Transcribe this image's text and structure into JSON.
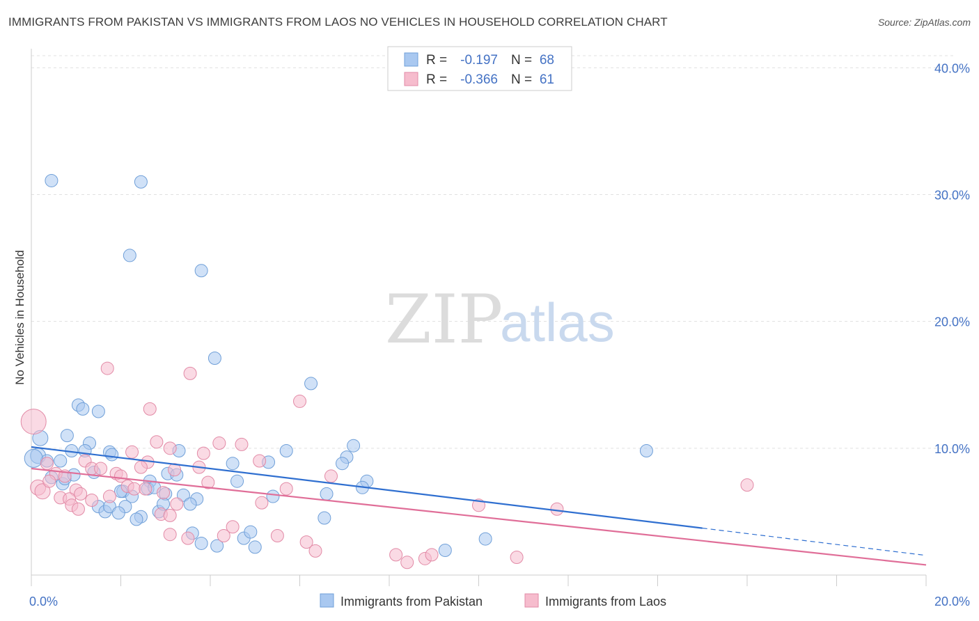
{
  "title": "IMMIGRANTS FROM PAKISTAN VS IMMIGRANTS FROM LAOS NO VEHICLES IN HOUSEHOLD CORRELATION CHART",
  "source": "Source: ZipAtlas.com",
  "watermark": {
    "zip": "ZIP",
    "atlas": "atlas"
  },
  "chart_data": {
    "type": "scatter",
    "xlabel": "",
    "ylabel": "No Vehicles in Household",
    "xlim": [
      0,
      20
    ],
    "ylim": [
      0,
      41.5
    ],
    "x_tick_labels": [
      {
        "value": 0,
        "label": "0.0%"
      },
      {
        "value": 20,
        "label": "20.0%"
      }
    ],
    "y_tick_labels": [
      {
        "value": 10,
        "label": "10.0%"
      },
      {
        "value": 20,
        "label": "20.0%"
      },
      {
        "value": 30,
        "label": "30.0%"
      },
      {
        "value": 40,
        "label": "40.0%"
      }
    ],
    "legend_stats": [
      {
        "r_label": "R =",
        "r_value": "-0.197",
        "n_label": "N =",
        "n_value": "68",
        "color": "#a9c8f0",
        "stroke": "#6f9fd8"
      },
      {
        "r_label": "R =",
        "r_value": "-0.366",
        "n_label": "N =",
        "n_value": "61",
        "color": "#f6bccd",
        "stroke": "#e28aa6"
      }
    ],
    "series": [
      {
        "name": "Immigrants from Pakistan",
        "color": "#a9c8f0",
        "stroke": "#6f9fd8",
        "line_color": "#2f6fd0",
        "trend": {
          "x0": 0,
          "y0": 10.1,
          "x1": 15,
          "y1": 3.7,
          "dash_to_x": 20,
          "dash_to_y": 1.55
        },
        "points": [
          [
            0.45,
            31.1
          ],
          [
            2.45,
            31.0
          ],
          [
            2.2,
            25.2
          ],
          [
            3.8,
            24.0
          ],
          [
            4.1,
            17.1
          ],
          [
            6.25,
            15.1
          ],
          [
            1.05,
            13.4
          ],
          [
            1.5,
            12.9
          ],
          [
            1.15,
            13.1
          ],
          [
            0.2,
            10.8
          ],
          [
            0.8,
            11.0
          ],
          [
            1.3,
            10.4
          ],
          [
            0.15,
            9.4
          ],
          [
            0.35,
            9.0
          ],
          [
            0.65,
            9.0
          ],
          [
            0.9,
            9.8
          ],
          [
            1.2,
            9.8
          ],
          [
            1.75,
            9.7
          ],
          [
            3.3,
            9.8
          ],
          [
            4.5,
            8.8
          ],
          [
            5.3,
            8.9
          ],
          [
            5.7,
            9.8
          ],
          [
            7.05,
            9.3
          ],
          [
            6.95,
            8.8
          ],
          [
            7.2,
            10.2
          ],
          [
            13.75,
            9.8
          ],
          [
            0.45,
            7.7
          ],
          [
            0.7,
            7.2
          ],
          [
            0.75,
            7.6
          ],
          [
            0.95,
            7.9
          ],
          [
            1.4,
            8.1
          ],
          [
            3.05,
            8.0
          ],
          [
            3.25,
            7.9
          ],
          [
            4.6,
            7.4
          ],
          [
            2.65,
            7.4
          ],
          [
            2.05,
            6.6
          ],
          [
            2.25,
            6.2
          ],
          [
            2.6,
            6.8
          ],
          [
            2.75,
            6.9
          ],
          [
            3.0,
            6.4
          ],
          [
            3.4,
            6.3
          ],
          [
            3.7,
            6.0
          ],
          [
            5.4,
            6.2
          ],
          [
            6.6,
            6.4
          ],
          [
            7.5,
            7.4
          ],
          [
            7.4,
            6.9
          ],
          [
            1.5,
            5.4
          ],
          [
            1.65,
            5.0
          ],
          [
            1.75,
            5.4
          ],
          [
            2.1,
            5.4
          ],
          [
            2.45,
            4.6
          ],
          [
            2.35,
            4.4
          ],
          [
            2.85,
            5.0
          ],
          [
            2.95,
            5.6
          ],
          [
            3.55,
            5.6
          ],
          [
            3.6,
            3.3
          ],
          [
            3.8,
            2.5
          ],
          [
            4.15,
            2.3
          ],
          [
            4.75,
            2.9
          ],
          [
            4.9,
            3.4
          ],
          [
            5.0,
            2.2
          ],
          [
            6.55,
            4.5
          ],
          [
            9.25,
            1.95
          ],
          [
            10.15,
            2.85
          ],
          [
            1.95,
            4.9
          ],
          [
            2.0,
            6.6
          ],
          [
            0.05,
            9.2
          ],
          [
            1.8,
            9.5
          ]
        ]
      },
      {
        "name": "Immigrants from Laos",
        "color": "#f6bccd",
        "stroke": "#e28aa6",
        "line_color": "#e06e98",
        "trend": {
          "x0": 0,
          "y0": 8.4,
          "x1": 20,
          "y1": 0.8
        },
        "points": [
          [
            0.05,
            12.1
          ],
          [
            1.7,
            16.3
          ],
          [
            3.55,
            15.9
          ],
          [
            6.0,
            13.7
          ],
          [
            2.65,
            13.1
          ],
          [
            2.8,
            10.5
          ],
          [
            4.2,
            10.4
          ],
          [
            4.7,
            10.3
          ],
          [
            3.1,
            10.0
          ],
          [
            3.85,
            9.6
          ],
          [
            2.25,
            9.7
          ],
          [
            1.2,
            9.0
          ],
          [
            2.6,
            8.9
          ],
          [
            3.75,
            8.5
          ],
          [
            5.1,
            9.0
          ],
          [
            0.35,
            8.8
          ],
          [
            0.55,
            8.0
          ],
          [
            0.75,
            7.8
          ],
          [
            1.35,
            8.4
          ],
          [
            1.55,
            8.4
          ],
          [
            1.9,
            8.0
          ],
          [
            2.0,
            7.8
          ],
          [
            2.45,
            8.5
          ],
          [
            3.2,
            8.3
          ],
          [
            1.0,
            6.7
          ],
          [
            1.75,
            6.2
          ],
          [
            2.15,
            7.0
          ],
          [
            2.3,
            6.8
          ],
          [
            2.55,
            6.8
          ],
          [
            2.95,
            6.5
          ],
          [
            3.95,
            7.3
          ],
          [
            0.15,
            6.9
          ],
          [
            0.25,
            6.6
          ],
          [
            0.4,
            7.4
          ],
          [
            0.65,
            6.1
          ],
          [
            0.85,
            6.0
          ],
          [
            1.1,
            6.4
          ],
          [
            1.35,
            5.9
          ],
          [
            0.9,
            5.5
          ],
          [
            1.05,
            5.2
          ],
          [
            2.9,
            4.8
          ],
          [
            3.1,
            4.7
          ],
          [
            3.25,
            5.6
          ],
          [
            5.15,
            5.7
          ],
          [
            5.7,
            6.8
          ],
          [
            6.7,
            7.8
          ],
          [
            10.0,
            5.5
          ],
          [
            11.75,
            5.2
          ],
          [
            16.0,
            7.1
          ],
          [
            4.5,
            3.8
          ],
          [
            3.1,
            3.2
          ],
          [
            3.5,
            2.9
          ],
          [
            4.3,
            3.1
          ],
          [
            5.5,
            3.1
          ],
          [
            6.15,
            2.6
          ],
          [
            6.35,
            1.9
          ],
          [
            8.15,
            1.6
          ],
          [
            8.4,
            1.0
          ],
          [
            8.8,
            1.3
          ],
          [
            8.95,
            1.6
          ],
          [
            10.85,
            1.4
          ]
        ]
      }
    ]
  }
}
